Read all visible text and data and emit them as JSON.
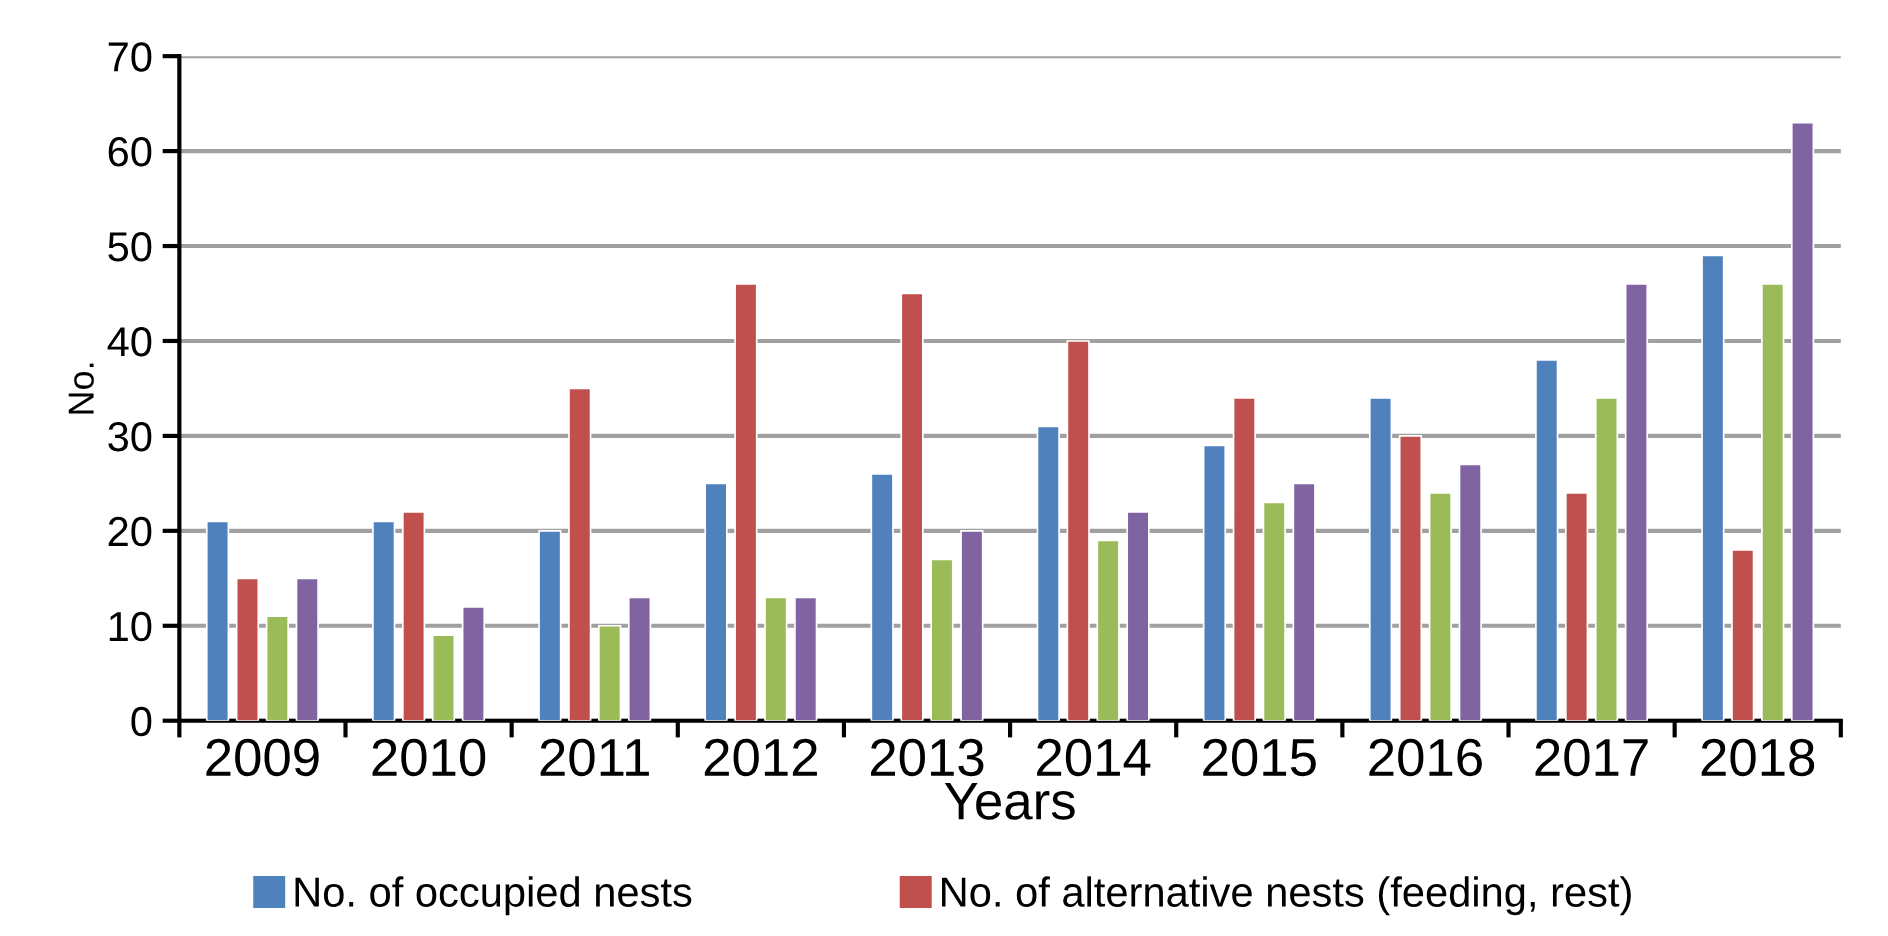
{
  "chart_data": {
    "type": "bar",
    "xlabel": "Years",
    "ylabel": "No.",
    "categories": [
      "2009",
      "2010",
      "2011",
      "2012",
      "2013",
      "2014",
      "2015",
      "2016",
      "2017",
      "2018"
    ],
    "series": [
      {
        "name": "No. of occupied nests",
        "color": "#4f81bd",
        "values": [
          21,
          21,
          20,
          25,
          26,
          31,
          29,
          34,
          38,
          49
        ]
      },
      {
        "name": "No. of alternative nests (feeding, rest)",
        "color": "#c0504d",
        "values": [
          15,
          22,
          35,
          46,
          45,
          40,
          34,
          30,
          24,
          18
        ]
      },
      {
        "color": "#9bbb59",
        "values": [
          11,
          9,
          10,
          13,
          17,
          19,
          23,
          24,
          34,
          46
        ]
      },
      {
        "color": "#8064a2",
        "values": [
          15,
          12,
          13,
          13,
          20,
          22,
          25,
          27,
          46,
          63
        ]
      }
    ],
    "ylim": [
      0,
      70
    ],
    "yticks": [
      0,
      10,
      20,
      30,
      40,
      50,
      60,
      70
    ],
    "grid": "y",
    "legend": "bottom"
  }
}
